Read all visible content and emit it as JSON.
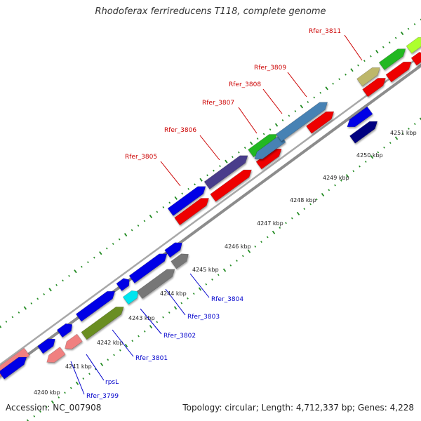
{
  "title": "Rhodoferax ferrireducens T118, complete genome",
  "accession": "Accession: NC_007908",
  "summary": "Topology: circular; Length: 4,712,337 bp; Genes: 4,228",
  "colors": {
    "backbone": "#999999",
    "tick": "#228b22",
    "label_top": "#cc0000",
    "label_bottom": "#0000cc"
  },
  "kbp_labels": [
    "4240 kbp",
    "4241 kbp",
    "4242 kbp",
    "4243 kbp",
    "4244 kbp",
    "4245 kbp",
    "4246 kbp",
    "4247 kbp",
    "4248 kbp",
    "4249 kbp",
    "4250 kbp",
    "4251 kbp"
  ],
  "genes_top": [
    "Rfer_3805",
    "Rfer_3806",
    "Rfer_3807",
    "Rfer_3808",
    "Rfer_3809",
    "Rfer_3811"
  ],
  "genes_bottom": [
    "Rfer_3799",
    "rpsL",
    "Rfer_3801",
    "Rfer_3802",
    "Rfer_3803",
    "Rfer_3804"
  ]
}
